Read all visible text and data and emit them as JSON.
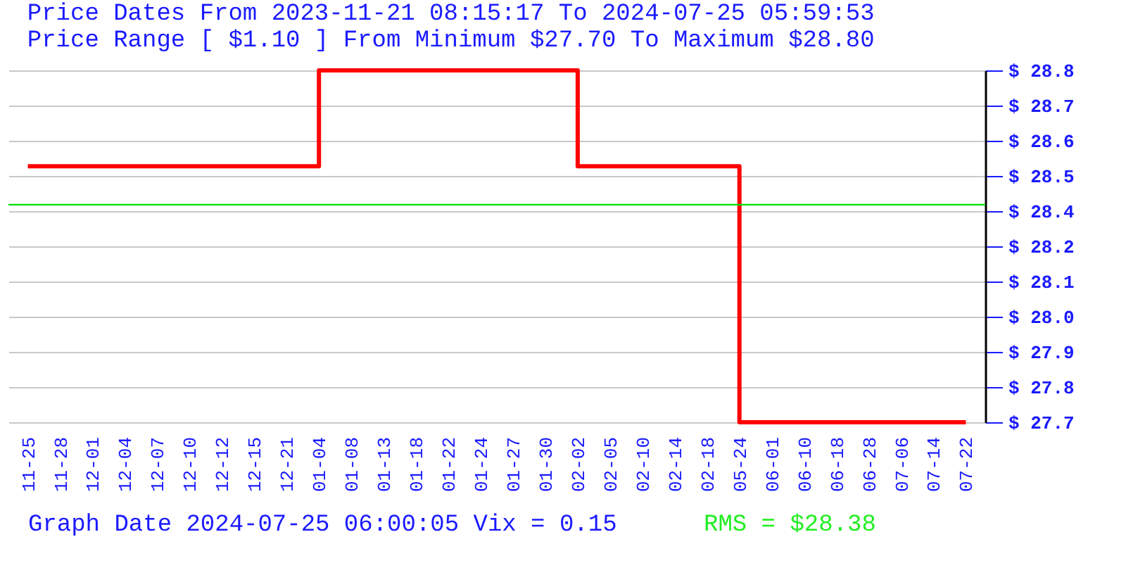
{
  "chart_data": {
    "type": "step",
    "title": "Price Dates From 2023-11-21 08:15:17 To 2024-07-25 05:59:53",
    "subtitle": "Price Range [ $1.10 ] From Minimum $27.70 To Maximum $28.80",
    "categories": [
      "11-25",
      "11-28",
      "12-01",
      "12-04",
      "12-07",
      "12-10",
      "12-12",
      "12-15",
      "12-21",
      "01-04",
      "01-08",
      "01-13",
      "01-18",
      "01-22",
      "01-24",
      "01-27",
      "01-30",
      "02-02",
      "02-05",
      "02-10",
      "02-14",
      "02-18",
      "05-24",
      "06-01",
      "06-10",
      "06-18",
      "06-28",
      "07-06",
      "07-14",
      "07-22"
    ],
    "series": [
      {
        "color": "#ff0000",
        "values": [
          28.5,
          28.5,
          28.5,
          28.5,
          28.5,
          28.5,
          28.5,
          28.5,
          28.5,
          28.8,
          28.8,
          28.8,
          28.8,
          28.8,
          28.8,
          28.8,
          28.8,
          28.5,
          28.5,
          28.5,
          28.5,
          28.5,
          27.7,
          27.7,
          27.7,
          27.7,
          27.7,
          27.7,
          27.7,
          27.7
        ]
      }
    ],
    "ylim": [
      27.7,
      28.8
    ],
    "yticks": [
      {
        "value": 27.7,
        "label": "$ 27.7"
      },
      {
        "value": 27.81,
        "label": "$ 27.8"
      },
      {
        "value": 27.92,
        "label": "$ 27.9"
      },
      {
        "value": 28.03,
        "label": "$ 28.0"
      },
      {
        "value": 28.14,
        "label": "$ 28.1"
      },
      {
        "value": 28.25,
        "label": "$ 28.2"
      },
      {
        "value": 28.36,
        "label": "$ 28.4"
      },
      {
        "value": 28.47,
        "label": "$ 28.5"
      },
      {
        "value": 28.58,
        "label": "$ 28.6"
      },
      {
        "value": 28.69,
        "label": "$ 28.7"
      },
      {
        "value": 28.8,
        "label": "$ 28.8"
      }
    ],
    "ref_lines": [
      {
        "axis": "y",
        "value": 28.38,
        "color": "#00dd00"
      }
    ],
    "grid": "y",
    "marker": "none",
    "line_style": "solid",
    "annotations": [
      "Graph Date 2024-07-25 06:00:05 Vix = 0.15",
      "RMS = $28.38"
    ]
  }
}
